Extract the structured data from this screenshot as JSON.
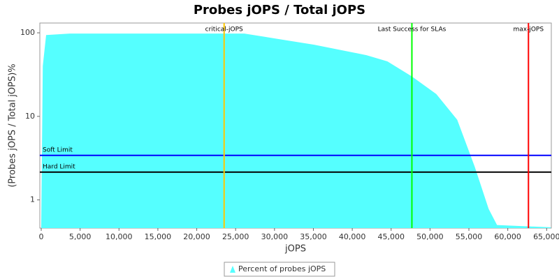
{
  "chart_data": {
    "type": "area",
    "title": "Probes jOPS / Total jOPS",
    "xlabel": "jOPS",
    "ylabel": "(Probes jOPS / Total jOPS)%",
    "x": [
      0,
      200,
      630,
      3680,
      26120,
      30600,
      35100,
      41830,
      44520,
      47670,
      50810,
      53500,
      55750,
      57540,
      58620,
      65530
    ],
    "series": [
      {
        "name": "Percent of probes jOPS",
        "color": "#55ffff",
        "values": [
          0.5,
          40,
          94,
          98,
          98,
          84,
          72,
          54,
          45.5,
          30,
          18.5,
          9.1,
          2.5,
          0.78,
          0.5,
          0.47
        ]
      }
    ],
    "xlim": [
      0,
      65600
    ],
    "ylim": [
      0.46,
      131
    ],
    "log_y": true,
    "xticks": [
      0,
      {
        "value": 5000,
        "label": "5,000"
      },
      {
        "value": 10000,
        "label": "10,000"
      },
      {
        "value": 15000,
        "label": "15,000"
      },
      {
        "value": 20000,
        "label": "20,000"
      },
      {
        "value": 25000,
        "label": "25,000"
      },
      {
        "value": 30000,
        "label": "30,000"
      },
      {
        "value": 35000,
        "label": "35,000"
      },
      {
        "value": 40000,
        "label": "40,000"
      },
      {
        "value": 45000,
        "label": "45,000"
      },
      {
        "value": 50000,
        "label": "50,000"
      },
      {
        "value": 55000,
        "label": "55,000"
      },
      {
        "value": 60000,
        "label": "60,000"
      },
      {
        "value": 65000,
        "label": "65,000"
      }
    ],
    "yticks": [
      1,
      10,
      100
    ],
    "vlines": [
      {
        "label": "critical-jOPS",
        "value": 23520,
        "color": "#ffc800"
      },
      {
        "label": "Last Success for SLAs",
        "value": 47670,
        "color": "#00ff00"
      },
      {
        "label": "max-jOPS",
        "value": 62660,
        "color": "#ff0000"
      }
    ],
    "hlines": [
      {
        "label": "Soft Limit",
        "value": 3.41,
        "color": "#0000ff"
      },
      {
        "label": "Hard Limit",
        "value": 2.15,
        "color": "#000000"
      }
    ],
    "legend": "bottom"
  }
}
